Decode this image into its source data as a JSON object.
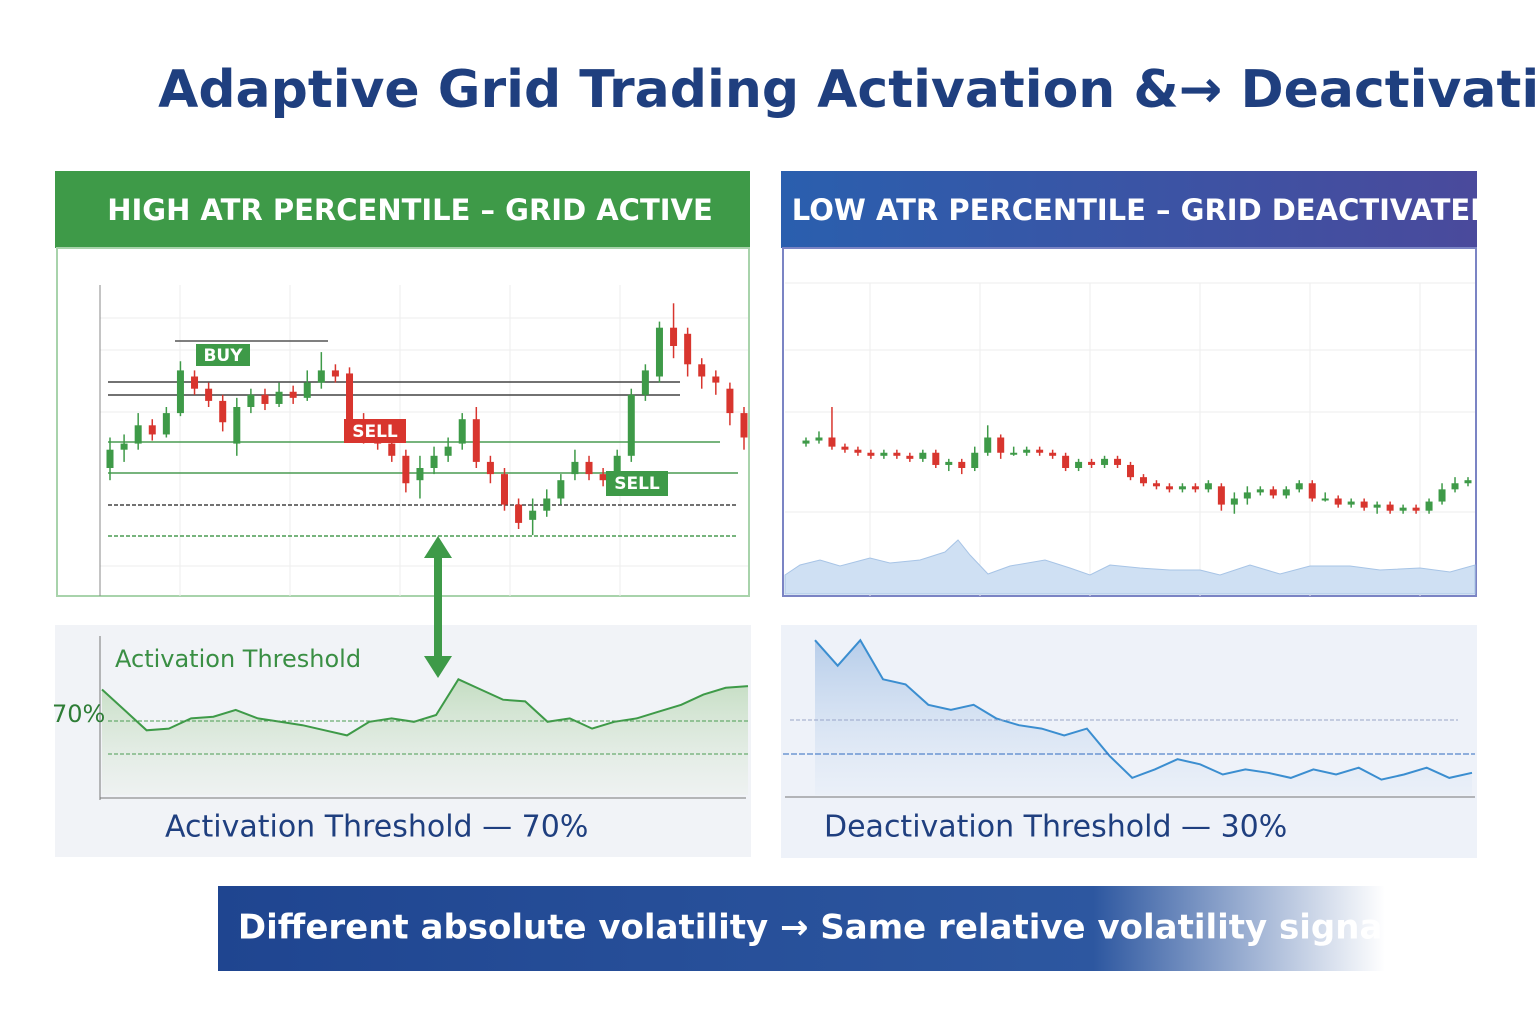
{
  "title": "Adaptive Grid Trading  Activation &→ Deactivation",
  "left": {
    "header": "HIGH ATR PERCENTILE – GRID ACTIVE",
    "labels": {
      "buy": "BUY",
      "sell1": "SELL",
      "sell2": "SELL"
    },
    "ylim": [
      0,
      100
    ],
    "candles": [
      [
        40,
        46,
        50,
        36
      ],
      [
        46,
        48,
        51,
        42
      ],
      [
        48,
        54,
        58,
        46
      ],
      [
        54,
        51,
        56,
        49
      ],
      [
        51,
        58,
        60,
        50
      ],
      [
        58,
        72,
        75,
        57
      ],
      [
        70,
        66,
        72,
        64
      ],
      [
        66,
        62,
        68,
        60
      ],
      [
        62,
        55,
        64,
        52
      ],
      [
        48,
        60,
        63,
        44
      ],
      [
        60,
        64,
        66,
        58
      ],
      [
        64,
        61,
        66,
        59
      ],
      [
        61,
        65,
        68,
        60
      ],
      [
        65,
        63,
        67,
        61
      ],
      [
        63,
        68,
        72,
        62
      ],
      [
        68,
        72,
        78,
        66
      ],
      [
        72,
        70,
        74,
        68
      ],
      [
        71,
        56,
        73,
        54
      ],
      [
        56,
        50,
        58,
        48
      ],
      [
        50,
        48,
        52,
        46
      ],
      [
        48,
        44,
        50,
        42
      ],
      [
        44,
        35,
        46,
        32
      ],
      [
        36,
        40,
        44,
        30
      ],
      [
        40,
        44,
        47,
        38
      ],
      [
        44,
        47,
        50,
        42
      ],
      [
        48,
        56,
        58,
        46
      ],
      [
        56,
        42,
        60,
        40
      ],
      [
        42,
        38,
        44,
        35
      ],
      [
        38,
        28,
        40,
        26
      ],
      [
        28,
        22,
        30,
        20
      ],
      [
        23,
        26,
        30,
        18
      ],
      [
        26,
        30,
        33,
        24
      ],
      [
        30,
        36,
        38,
        28
      ],
      [
        38,
        42,
        46,
        36
      ],
      [
        42,
        38,
        44,
        36
      ],
      [
        38,
        36,
        40,
        34
      ],
      [
        36,
        44,
        46,
        34
      ],
      [
        44,
        64,
        66,
        42
      ],
      [
        64,
        72,
        74,
        62
      ],
      [
        70,
        86,
        88,
        68
      ],
      [
        86,
        80,
        94,
        76
      ],
      [
        84,
        74,
        86,
        70
      ],
      [
        74,
        70,
        76,
        66
      ],
      [
        70,
        68,
        72,
        64
      ],
      [
        66,
        58,
        68,
        54
      ],
      [
        58,
        50,
        60,
        46
      ]
    ],
    "atr_label": "Activation Threshold",
    "threshold_pct": "70%",
    "atr_ylim": [
      0,
      100
    ],
    "atr": [
      65,
      53,
      41,
      42,
      48,
      49,
      53,
      48,
      46,
      44,
      41,
      38,
      46,
      48,
      46,
      50,
      71,
      65,
      59,
      58,
      46,
      48,
      42,
      46,
      48,
      52,
      56,
      62,
      66,
      67
    ],
    "caption": "Activation Threshold — 70%"
  },
  "right": {
    "header": "LOW ATR PERCENTILE – GRID DEACTIVATED",
    "ylim": [
      0,
      100
    ],
    "candles": [
      [
        48,
        49,
        50,
        47
      ],
      [
        49,
        50,
        52,
        48
      ],
      [
        50,
        47,
        60,
        46
      ],
      [
        47,
        46,
        48,
        45
      ],
      [
        46,
        45,
        47,
        44
      ],
      [
        45,
        44,
        46,
        43
      ],
      [
        44,
        45,
        46,
        43
      ],
      [
        45,
        44,
        46,
        43
      ],
      [
        44,
        43,
        45,
        42
      ],
      [
        43,
        45,
        46,
        42
      ],
      [
        45,
        41,
        46,
        40
      ],
      [
        41,
        42,
        43,
        39
      ],
      [
        42,
        40,
        43,
        38
      ],
      [
        40,
        45,
        47,
        39
      ],
      [
        45,
        50,
        54,
        44
      ],
      [
        50,
        45,
        51,
        43
      ],
      [
        45,
        45,
        47,
        44
      ],
      [
        45,
        46,
        47,
        44
      ],
      [
        46,
        45,
        47,
        44
      ],
      [
        45,
        44,
        46,
        43
      ],
      [
        44,
        40,
        45,
        39
      ],
      [
        40,
        42,
        43,
        39
      ],
      [
        42,
        41,
        43,
        40
      ],
      [
        41,
        43,
        44,
        40
      ],
      [
        43,
        41,
        44,
        40
      ],
      [
        41,
        37,
        42,
        36
      ],
      [
        37,
        35,
        38,
        34
      ],
      [
        35,
        34,
        36,
        33
      ],
      [
        34,
        33,
        35,
        32
      ],
      [
        33,
        34,
        35,
        32
      ],
      [
        34,
        33,
        35,
        32
      ],
      [
        33,
        35,
        36,
        32
      ],
      [
        34,
        28,
        35,
        26
      ],
      [
        28,
        30,
        32,
        25
      ],
      [
        30,
        32,
        34,
        28
      ],
      [
        32,
        33,
        34,
        31
      ],
      [
        33,
        31,
        34,
        30
      ],
      [
        31,
        33,
        34,
        30
      ],
      [
        33,
        35,
        36,
        32
      ],
      [
        35,
        30,
        36,
        29
      ],
      [
        30,
        30,
        32,
        29
      ],
      [
        30,
        28,
        31,
        27
      ],
      [
        28,
        29,
        30,
        27
      ],
      [
        29,
        27,
        30,
        26
      ],
      [
        27,
        28,
        29,
        25
      ],
      [
        28,
        26,
        29,
        25
      ],
      [
        26,
        27,
        28,
        25
      ],
      [
        27,
        26,
        28,
        25
      ],
      [
        26,
        29,
        30,
        25
      ],
      [
        29,
        33,
        35,
        28
      ],
      [
        33,
        35,
        37,
        32
      ],
      [
        35,
        36,
        37,
        34
      ]
    ],
    "atr_ylim": [
      0,
      100
    ],
    "atr": [
      94,
      79,
      94,
      71,
      68,
      56,
      53,
      56,
      48,
      44,
      42,
      38,
      42,
      26,
      13,
      18,
      24,
      21,
      15,
      18,
      16,
      13,
      18,
      15,
      19,
      12,
      15,
      19,
      13,
      16
    ],
    "caption": "Deactivation Threshold — 30%"
  },
  "banner": "Different absolute volatility → Same relative volatility signal"
}
